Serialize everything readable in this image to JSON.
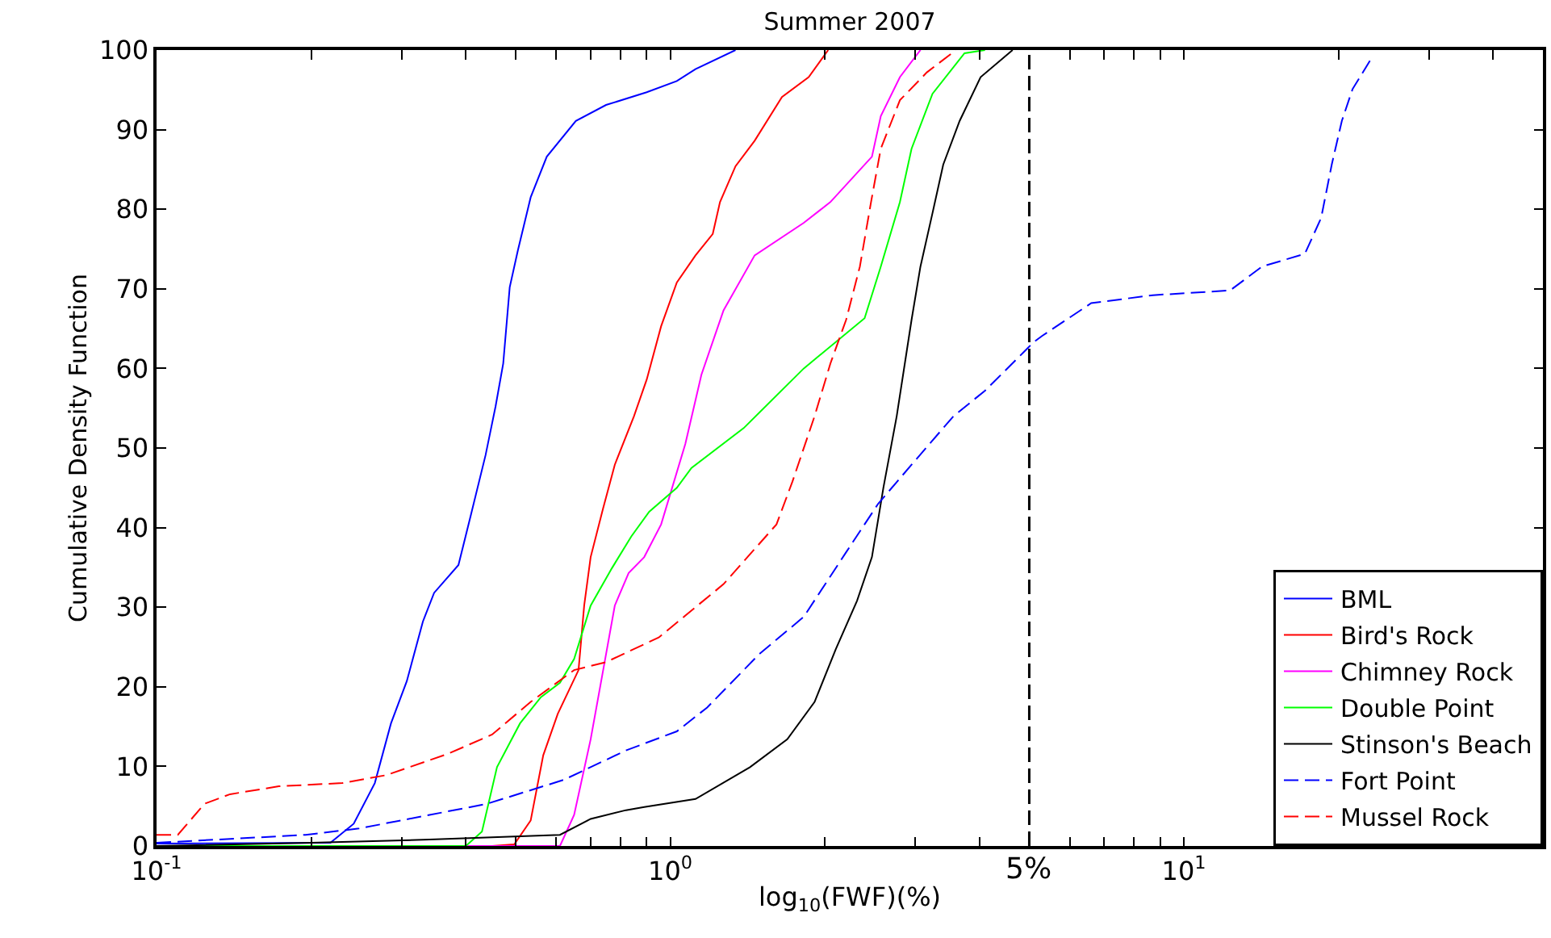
{
  "chart_data": {
    "type": "line",
    "title": "Summer 2007",
    "xlabel": "log$_{10}$(FWF)(%)",
    "ylabel": "Cumulative Density Function",
    "log": "x",
    "xlim": [
      0.1,
      50
    ],
    "ylim": [
      0,
      100
    ],
    "xticks": [
      {
        "value": 0.1,
        "label": "10$^{-1}$"
      },
      {
        "value": 0.2,
        "label": null
      },
      {
        "value": 0.3,
        "label": null
      },
      {
        "value": 0.4,
        "label": null
      },
      {
        "value": 0.5,
        "label": null
      },
      {
        "value": 0.6,
        "label": null
      },
      {
        "value": 0.7,
        "label": null
      },
      {
        "value": 0.8,
        "label": null
      },
      {
        "value": 0.9,
        "label": null
      },
      {
        "value": 1,
        "label": "10$^{0}$"
      },
      {
        "value": 2,
        "label": null
      },
      {
        "value": 3,
        "label": null
      },
      {
        "value": 4,
        "label": null
      },
      {
        "value": 6,
        "label": null
      },
      {
        "value": 7,
        "label": null
      },
      {
        "value": 8,
        "label": null
      },
      {
        "value": 9,
        "label": null
      },
      {
        "value": 10,
        "label": "10$^{1}$"
      },
      {
        "value": 20,
        "label": null
      },
      {
        "value": 30,
        "label": null
      },
      {
        "value": 40,
        "label": null
      }
    ],
    "yticks": [
      0,
      10,
      20,
      30,
      40,
      50,
      60,
      70,
      80,
      90,
      100
    ],
    "legend": "bottom right",
    "marker": "none",
    "ref_lines": [
      {
        "axis": "x",
        "value": 5,
        "label": "5%",
        "color": "#000000",
        "line_style": "dashed"
      }
    ],
    "series": [
      {
        "name": "BML",
        "color": "#0000ff",
        "line_style": "solid",
        "x": [
          0.1,
          0.218,
          0.242,
          0.266,
          0.286,
          0.307,
          0.33,
          0.347,
          0.387,
          0.41,
          0.437,
          0.457,
          0.473,
          0.487,
          0.505,
          0.535,
          0.575,
          0.655,
          0.75,
          0.9,
          1.03,
          1.12,
          1.34
        ],
        "values": [
          0.3,
          0.4,
          2.8,
          7.9,
          15.4,
          20.7,
          28.2,
          31.8,
          35.3,
          41.8,
          49.1,
          55.2,
          60.6,
          70.2,
          74.8,
          81.5,
          86.6,
          91.1,
          93.1,
          94.7,
          96.1,
          97.6,
          100
        ]
      },
      {
        "name": "Bird's Rock",
        "color": "#ff0000",
        "line_style": "solid",
        "x": [
          0.1,
          0.45,
          0.497,
          0.535,
          0.566,
          0.604,
          0.663,
          0.68,
          0.7,
          0.74,
          0.78,
          0.85,
          0.9,
          0.96,
          1.03,
          1.12,
          1.21,
          1.25,
          1.34,
          1.46,
          1.65,
          1.86,
          2.03
        ],
        "values": [
          0,
          0,
          0.2,
          3.2,
          11.4,
          16.6,
          22.1,
          30.2,
          36.3,
          42.4,
          47.9,
          54.0,
          58.6,
          65.3,
          70.8,
          74.2,
          76.9,
          80.9,
          85.4,
          88.6,
          94.1,
          96.6,
          100
        ]
      },
      {
        "name": "Chimney Rock",
        "color": "#ff00ff",
        "line_style": "solid",
        "x": [
          0.1,
          0.61,
          0.65,
          0.7,
          0.75,
          0.78,
          0.83,
          0.89,
          0.96,
          1.07,
          1.15,
          1.27,
          1.46,
          1.82,
          2.05,
          2.47,
          2.57,
          2.8,
          3.07
        ],
        "values": [
          0,
          0,
          3.9,
          13.4,
          24.1,
          30.2,
          34.3,
          36.3,
          40.4,
          50.5,
          59.2,
          67.3,
          74.2,
          78.3,
          80.9,
          86.6,
          91.7,
          96.6,
          100
        ]
      },
      {
        "name": "Double Point",
        "color": "#00ff00",
        "line_style": "solid",
        "x": [
          0.1,
          0.4,
          0.43,
          0.46,
          0.51,
          0.56,
          0.61,
          0.65,
          0.7,
          0.77,
          0.84,
          0.91,
          1.03,
          1.1,
          1.39,
          1.82,
          2.39,
          2.57,
          2.8,
          2.95,
          3.24,
          3.74,
          4.1
        ],
        "values": [
          0,
          0,
          1.8,
          9.9,
          15.4,
          18.7,
          20.5,
          23.5,
          30.2,
          34.9,
          38.9,
          42.0,
          45.0,
          47.5,
          52.5,
          60.0,
          66.3,
          72.8,
          80.9,
          87.6,
          94.5,
          99.6,
          100
        ]
      },
      {
        "name": "Stinson's Beach",
        "color": "#000000",
        "line_style": "solid",
        "x": [
          0.1,
          0.2,
          0.34,
          0.61,
          0.7,
          0.82,
          0.89,
          1.12,
          1.43,
          1.69,
          1.91,
          2.1,
          2.31,
          2.47,
          2.6,
          2.76,
          2.95,
          3.07,
          3.24,
          3.4,
          3.66,
          4.02,
          4.64
        ],
        "values": [
          0,
          0.4,
          0.8,
          1.4,
          3.4,
          4.5,
          4.9,
          5.9,
          9.9,
          13.4,
          18.1,
          24.7,
          30.8,
          36.3,
          45.0,
          54.0,
          66.1,
          72.8,
          79.5,
          85.6,
          91.1,
          96.6,
          100
        ]
      },
      {
        "name": "Fort Point",
        "color": "#0000ff",
        "line_style": "dashed",
        "x": [
          0.1,
          0.195,
          0.248,
          0.34,
          0.44,
          0.62,
          0.82,
          1.03,
          1.18,
          1.49,
          1.82,
          2.2,
          2.54,
          2.95,
          3.56,
          4.1,
          5.1,
          5.3,
          6.6,
          8.7,
          12.3,
          14.2,
          17.2,
          18.5,
          19.4,
          20.3,
          21.3,
          23.1
        ],
        "values": [
          0.4,
          1.4,
          2.2,
          3.9,
          5.3,
          8.3,
          12.0,
          14.4,
          17.4,
          24.1,
          28.8,
          36.9,
          43.0,
          47.9,
          54.0,
          57.2,
          63.3,
          64.1,
          68.2,
          69.2,
          69.8,
          72.8,
          74.4,
          78.9,
          85.6,
          91.1,
          95.1,
          98.8
        ]
      },
      {
        "name": "Mussel Rock",
        "color": "#ff0000",
        "line_style": "dashed",
        "x": [
          0.1,
          0.11,
          0.124,
          0.139,
          0.173,
          0.23,
          0.28,
          0.37,
          0.45,
          0.535,
          0.65,
          0.75,
          0.95,
          1.27,
          1.61,
          1.73,
          1.91,
          2.05,
          2.2,
          2.34,
          2.46,
          2.57,
          2.8,
          3.16,
          3.6
        ],
        "values": [
          1.4,
          1.4,
          5.3,
          6.5,
          7.5,
          7.9,
          8.9,
          11.6,
          14.0,
          18.1,
          22.1,
          23.1,
          26.2,
          32.9,
          40.4,
          45.8,
          54.0,
          60.6,
          66.1,
          72.8,
          80.9,
          87.6,
          93.7,
          97.2,
          100
        ]
      }
    ]
  }
}
